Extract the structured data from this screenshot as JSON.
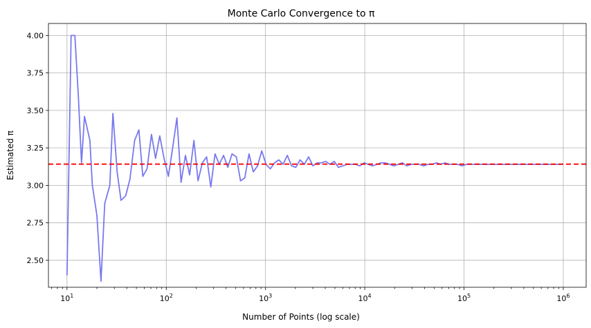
{
  "chart_data": {
    "type": "line",
    "title": "Monte Carlo Convergence to π",
    "xlabel": "Number of Points (log scale)",
    "ylabel": "Estimated π",
    "xscale": "log",
    "xlim": [
      6.5,
      1700000
    ],
    "ylim": [
      2.32,
      4.08
    ],
    "grid": true,
    "x_ticks": [
      {
        "value": 10,
        "base": "10",
        "exp": "1"
      },
      {
        "value": 100,
        "base": "10",
        "exp": "2"
      },
      {
        "value": 1000,
        "base": "10",
        "exp": "3"
      },
      {
        "value": 10000,
        "base": "10",
        "exp": "4"
      },
      {
        "value": 100000,
        "base": "10",
        "exp": "5"
      },
      {
        "value": 1000000,
        "base": "10",
        "exp": "6"
      }
    ],
    "y_ticks": [
      {
        "value": 2.5,
        "label": "2.50"
      },
      {
        "value": 2.75,
        "label": "2.75"
      },
      {
        "value": 3.0,
        "label": "3.00"
      },
      {
        "value": 3.25,
        "label": "3.25"
      },
      {
        "value": 3.5,
        "label": "3.50"
      },
      {
        "value": 3.75,
        "label": "3.75"
      },
      {
        "value": 4.0,
        "label": "4.00"
      }
    ],
    "reference_line": {
      "value": 3.14159,
      "color": "#ff0000",
      "style": "dashed"
    },
    "series": [
      {
        "color": "#7878f0",
        "x": [
          10,
          11,
          12,
          13,
          14,
          15,
          17,
          18,
          20,
          22,
          24,
          27,
          29,
          32,
          35,
          39,
          43,
          48,
          53,
          58,
          64,
          71,
          78,
          86,
          95,
          105,
          116,
          128,
          141,
          156,
          172,
          190,
          209,
          231,
          255,
          281,
          310,
          342,
          378,
          417,
          460,
          508,
          560,
          618,
          682,
          753,
          831,
          917,
          1012,
          1117,
          1233,
          1361,
          1502,
          1658,
          1830,
          2020,
          2230,
          2462,
          2718,
          3000,
          3312,
          3656,
          4036,
          4455,
          4918,
          5429,
          5993,
          6616,
          7304,
          8063,
          8901,
          9826,
          10847,
          11974,
          13218,
          14592,
          16108,
          17782,
          19630,
          21670,
          23922,
          26408,
          29152,
          32182,
          35527,
          39219,
          43295,
          47794,
          52761,
          58244,
          64297,
          70979,
          78356,
          86499,
          95489,
          105412,
          116367,
          128460,
          141811,
          156548,
          172817,
          190777,
          210603,
          232490,
          256651,
          283324,
          312768,
          345273,
          381155,
          420766,
          464493,
          512765,
          566054,
          624881,
          689822,
          761511,
          840652,
          928016,
          1000000
        ],
        "y": [
          2.4,
          4.0,
          4.0,
          3.6,
          3.15,
          3.46,
          3.3,
          3.0,
          2.8,
          2.36,
          2.88,
          3.0,
          3.48,
          3.09,
          2.9,
          2.93,
          3.04,
          3.3,
          3.37,
          3.06,
          3.11,
          3.34,
          3.18,
          3.33,
          3.18,
          3.06,
          3.25,
          3.45,
          3.02,
          3.2,
          3.07,
          3.3,
          3.03,
          3.15,
          3.19,
          2.99,
          3.21,
          3.14,
          3.2,
          3.12,
          3.21,
          3.19,
          3.03,
          3.05,
          3.21,
          3.09,
          3.13,
          3.23,
          3.14,
          3.11,
          3.15,
          3.17,
          3.14,
          3.2,
          3.13,
          3.12,
          3.17,
          3.14,
          3.19,
          3.13,
          3.15,
          3.15,
          3.16,
          3.14,
          3.16,
          3.12,
          3.13,
          3.14,
          3.14,
          3.14,
          3.13,
          3.15,
          3.14,
          3.13,
          3.14,
          3.15,
          3.15,
          3.14,
          3.13,
          3.14,
          3.15,
          3.13,
          3.14,
          3.14,
          3.14,
          3.13,
          3.14,
          3.14,
          3.15,
          3.14,
          3.15,
          3.14,
          3.14,
          3.14,
          3.13,
          3.14,
          3.14,
          3.14,
          3.14,
          3.14,
          3.14,
          3.14,
          3.14,
          3.14,
          3.14,
          3.14,
          3.14,
          3.14,
          3.14,
          3.14,
          3.14,
          3.14,
          3.14,
          3.14,
          3.14,
          3.14,
          3.14,
          3.14,
          3.14
        ]
      }
    ]
  }
}
